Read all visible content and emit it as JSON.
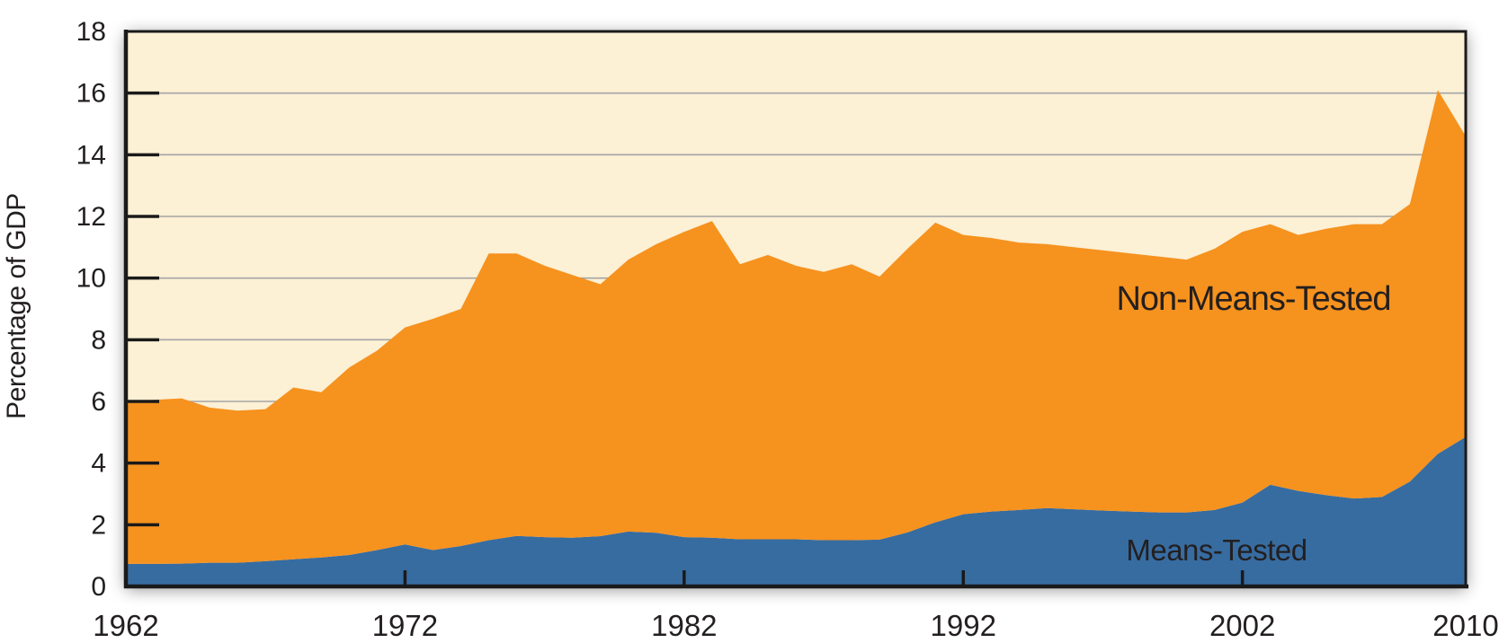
{
  "figure": {
    "y_axis_title": "Percentage of GDP"
  },
  "colors": {
    "page_background": "#FFFFFF",
    "plot_background": "#FCF0D5",
    "orange_area": "#F6921E",
    "blue_area": "#376CA1",
    "gridline": "#A5A5A5",
    "axis": "#1A1A1A",
    "tick_text": "#231F20",
    "upper_label_text": "#231F20",
    "lower_label_text": "#FFFFFF"
  },
  "chart_data": {
    "type": "area",
    "stacked": true,
    "title": "",
    "xlabel": "",
    "ylabel": "Percentage of GDP",
    "xlim": [
      1962,
      2010
    ],
    "ylim": [
      0,
      18
    ],
    "grid": true,
    "legend_position": "inline-labels",
    "x": [
      1962,
      1963,
      1964,
      1965,
      1966,
      1967,
      1968,
      1969,
      1970,
      1971,
      1972,
      1973,
      1974,
      1975,
      1976,
      1977,
      1978,
      1979,
      1980,
      1981,
      1982,
      1983,
      1984,
      1985,
      1986,
      1987,
      1988,
      1989,
      1990,
      1991,
      1992,
      1993,
      1994,
      1995,
      1996,
      1997,
      1998,
      1999,
      2000,
      2001,
      2002,
      2003,
      2004,
      2005,
      2006,
      2007,
      2008,
      2009,
      2010
    ],
    "x_tick_marks": [
      1972,
      1982,
      1992,
      2002
    ],
    "x_tick_labels": [
      "1962",
      "1972",
      "1982",
      "1992",
      "2002",
      "2010"
    ],
    "x_tick_label_years": [
      1962,
      1972,
      1982,
      1992,
      2002,
      2010
    ],
    "y_tick_values": [
      0,
      2,
      4,
      6,
      8,
      10,
      12,
      14,
      16,
      18
    ],
    "y_tick_labels": [
      "0",
      "2",
      "4",
      "6",
      "8",
      "10",
      "12",
      "14",
      "16",
      "18"
    ],
    "series": [
      {
        "name": "Means-Tested",
        "color": "#376CA1",
        "label_color": "#FFFFFF",
        "values": [
          0.73,
          0.73,
          0.74,
          0.77,
          0.77,
          0.82,
          0.88,
          0.94,
          1.02,
          1.18,
          1.36,
          1.18,
          1.31,
          1.5,
          1.64,
          1.6,
          1.58,
          1.63,
          1.78,
          1.74,
          1.6,
          1.58,
          1.53,
          1.53,
          1.53,
          1.5,
          1.5,
          1.52,
          1.75,
          2.08,
          2.34,
          2.43,
          2.48,
          2.54,
          2.5,
          2.46,
          2.43,
          2.4,
          2.4,
          2.48,
          2.72,
          3.3,
          3.1,
          2.96,
          2.85,
          2.9,
          3.4,
          4.3,
          4.85
        ]
      },
      {
        "name": "Non-Means-Tested",
        "color": "#F6921E",
        "label_color": "#231F20",
        "values": [
          5.22,
          5.32,
          5.36,
          5.03,
          4.93,
          4.93,
          5.57,
          5.36,
          6.08,
          6.47,
          7.04,
          7.5,
          7.69,
          9.3,
          9.16,
          8.8,
          8.52,
          8.17,
          8.82,
          9.36,
          9.9,
          10.27,
          8.92,
          9.22,
          8.87,
          8.7,
          8.95,
          8.53,
          9.2,
          9.72,
          9.06,
          8.87,
          8.67,
          8.56,
          8.5,
          8.44,
          8.37,
          8.3,
          8.2,
          8.47,
          8.78,
          8.45,
          8.3,
          8.64,
          8.9,
          8.85,
          9.0,
          11.8,
          9.75
        ]
      }
    ]
  }
}
